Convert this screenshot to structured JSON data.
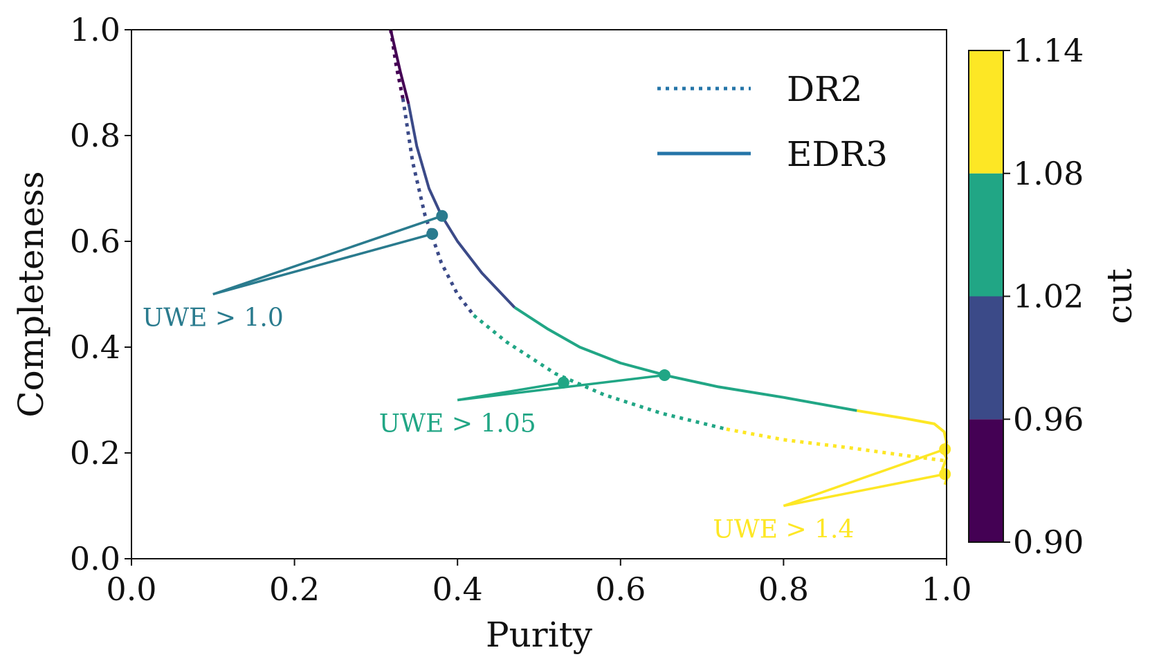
{
  "chart_data": {
    "type": "line",
    "xlabel": "Purity",
    "ylabel": "Completeness",
    "xlim": [
      0.0,
      1.0
    ],
    "ylim": [
      0.0,
      1.0
    ],
    "xticks": [
      "0.0",
      "0.2",
      "0.4",
      "0.6",
      "0.8",
      "1.0"
    ],
    "yticks": [
      "0.0",
      "0.2",
      "0.4",
      "0.6",
      "0.8",
      "1.0"
    ],
    "grid": false,
    "legend_position": "top-right",
    "legend": [
      {
        "label": "DR2",
        "style": "dotted"
      },
      {
        "label": "EDR3",
        "style": "solid"
      }
    ],
    "colorbar": {
      "label": "cut",
      "ticks": [
        "0.90",
        "0.96",
        "1.02",
        "1.08",
        "1.14"
      ],
      "bins": [
        {
          "from": 0.9,
          "to": 0.96,
          "color": "#440154"
        },
        {
          "from": 0.96,
          "to": 1.02,
          "color": "#3b4a88"
        },
        {
          "from": 1.02,
          "to": 1.08,
          "color": "#21a685"
        },
        {
          "from": 1.08,
          "to": 1.14,
          "color": "#fde725"
        }
      ]
    },
    "series": [
      {
        "name": "DR2",
        "style": "dotted",
        "segments": [
          {
            "color": "#440154",
            "points": [
              [
                0.318,
                1.0
              ],
              [
                0.325,
                0.93
              ],
              [
                0.333,
                0.87
              ]
            ]
          },
          {
            "color": "#3b4a88",
            "points": [
              [
                0.333,
                0.87
              ],
              [
                0.345,
                0.75
              ],
              [
                0.36,
                0.65
              ],
              [
                0.38,
                0.56
              ],
              [
                0.4,
                0.5
              ],
              [
                0.42,
                0.46
              ]
            ]
          },
          {
            "color": "#21a685",
            "points": [
              [
                0.42,
                0.46
              ],
              [
                0.46,
                0.41
              ],
              [
                0.52,
                0.35
              ],
              [
                0.58,
                0.31
              ],
              [
                0.65,
                0.275
              ],
              [
                0.73,
                0.245
              ]
            ]
          },
          {
            "color": "#fde725",
            "points": [
              [
                0.73,
                0.245
              ],
              [
                0.8,
                0.225
              ],
              [
                0.88,
                0.21
              ],
              [
                0.95,
                0.195
              ],
              [
                1.0,
                0.185
              ]
            ]
          }
        ]
      },
      {
        "name": "EDR3",
        "style": "solid",
        "segments": [
          {
            "color": "#440154",
            "points": [
              [
                0.318,
                1.0
              ],
              [
                0.33,
                0.92
              ],
              [
                0.34,
                0.86
              ]
            ]
          },
          {
            "color": "#3b4a88",
            "points": [
              [
                0.34,
                0.86
              ],
              [
                0.35,
                0.78
              ],
              [
                0.365,
                0.7
              ],
              [
                0.38,
                0.65
              ],
              [
                0.4,
                0.6
              ],
              [
                0.43,
                0.54
              ],
              [
                0.47,
                0.475
              ]
            ]
          },
          {
            "color": "#21a685",
            "points": [
              [
                0.47,
                0.475
              ],
              [
                0.51,
                0.435
              ],
              [
                0.55,
                0.4
              ],
              [
                0.6,
                0.37
              ],
              [
                0.66,
                0.345
              ],
              [
                0.72,
                0.325
              ],
              [
                0.8,
                0.305
              ],
              [
                0.89,
                0.28
              ]
            ]
          },
          {
            "color": "#fde725",
            "points": [
              [
                0.89,
                0.28
              ],
              [
                0.95,
                0.265
              ],
              [
                0.985,
                0.255
              ],
              [
                0.997,
                0.24
              ],
              [
                1.0,
                0.22
              ],
              [
                0.995,
                0.205
              ],
              [
                1.0,
                0.19
              ],
              [
                0.995,
                0.17
              ],
              [
                1.0,
                0.15
              ],
              [
                0.998,
                0.14
              ]
            ]
          }
        ]
      }
    ],
    "markers": [
      {
        "x": 0.381,
        "y": 0.648,
        "color": "#2a7b8e"
      },
      {
        "x": 0.369,
        "y": 0.614,
        "color": "#2a7b8e"
      },
      {
        "x": 0.53,
        "y": 0.333,
        "color": "#21a685"
      },
      {
        "x": 0.654,
        "y": 0.347,
        "color": "#21a685"
      },
      {
        "x": 0.998,
        "y": 0.207,
        "color": "#fde725"
      },
      {
        "x": 0.998,
        "y": 0.16,
        "color": "#fde725"
      }
    ],
    "annotations": [
      {
        "text": "UWE > 1.0",
        "color": "#2a7b8e",
        "anchor": [
          0.1,
          0.5
        ],
        "text_pos": [
          0.1,
          0.44
        ],
        "targets": [
          [
            0.381,
            0.648
          ],
          [
            0.369,
            0.614
          ]
        ]
      },
      {
        "text": "UWE > 1.05",
        "color": "#21a685",
        "anchor": [
          0.4,
          0.3
        ],
        "text_pos": [
          0.4,
          0.24
        ],
        "targets": [
          [
            0.53,
            0.333
          ],
          [
            0.654,
            0.347
          ]
        ]
      },
      {
        "text": "UWE > 1.4",
        "color": "#fde725",
        "anchor": [
          0.8,
          0.1
        ],
        "text_pos": [
          0.8,
          0.04
        ],
        "targets": [
          [
            0.998,
            0.207
          ],
          [
            0.998,
            0.16
          ]
        ]
      }
    ]
  }
}
